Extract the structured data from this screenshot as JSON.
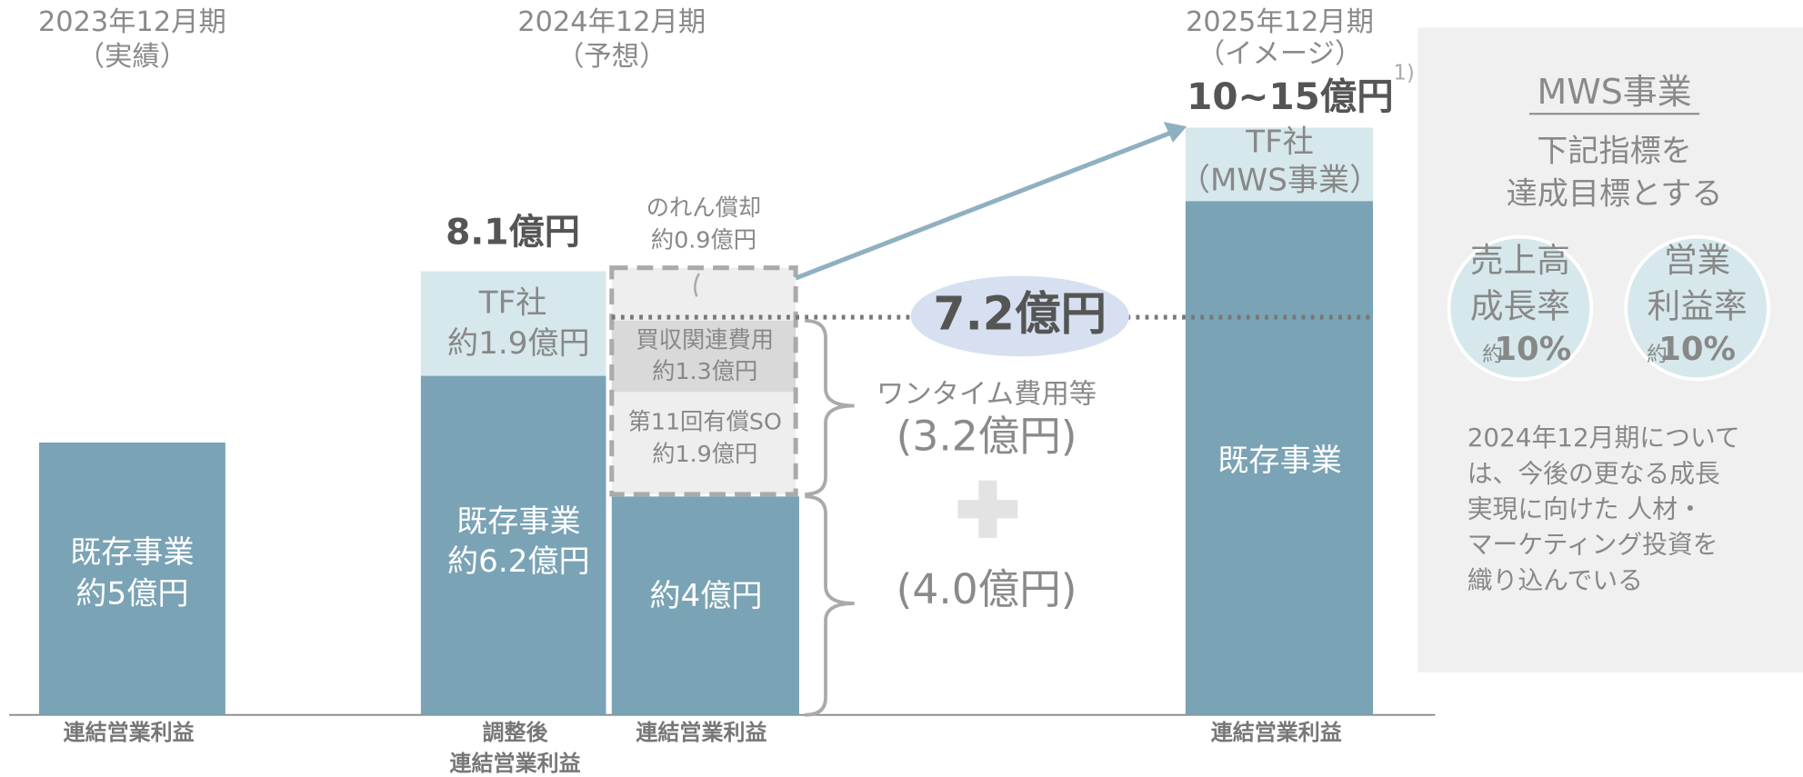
{
  "periods": [
    {
      "label": "2023年12月期",
      "note": "（実績）"
    },
    {
      "label": "2024年12月期",
      "note": "（予想）"
    },
    {
      "label": "2025年12月期",
      "note": "（イメージ）"
    }
  ],
  "bar_2023": {
    "lines": [
      "既存事業",
      "約5億円"
    ],
    "axis_label": "連結営業利益"
  },
  "bar_2024_adjusted": {
    "total": "8.1億円",
    "top": [
      "TF社",
      "約1.9億円"
    ],
    "bottom": [
      "既存事業",
      "約6.2億円"
    ],
    "axis_label": [
      "調整後",
      "連結営業利益"
    ]
  },
  "bar_2024": {
    "goodwill": [
      "のれん償却",
      "約0.9億円"
    ],
    "acquisition": [
      "買収関連費用",
      "約1.3億円"
    ],
    "so": [
      "第11回有償SO",
      "約1.9億円"
    ],
    "base": "約4億円",
    "axis_label": "連結営業利益"
  },
  "center": {
    "highlight": "7.2億円",
    "onetime_label": "ワンタイム費用等",
    "onetime_value": "(3.2億円)",
    "base_value": "(4.0億円)"
  },
  "bar_2025": {
    "total": "10~15億円",
    "footnote": "1)",
    "top": [
      "TF社",
      "（MWS事業）"
    ],
    "bottom": "既存事業",
    "axis_label": "連結営業利益"
  },
  "panel": {
    "title": "MWS事業",
    "subtitle": [
      "下記指標を",
      "達成目標とする"
    ],
    "metrics": [
      {
        "lines": [
          "売上高",
          "成長率"
        ],
        "prefix": "約",
        "value": "10%"
      },
      {
        "lines": [
          "営業",
          "利益率"
        ],
        "prefix": "約",
        "value": "10%"
      }
    ],
    "note": [
      "2024年12月期について",
      "は、今後の更なる成長",
      "実現に向けた 人材・",
      "マーケティング投資を",
      "織り込んでいる"
    ]
  }
}
